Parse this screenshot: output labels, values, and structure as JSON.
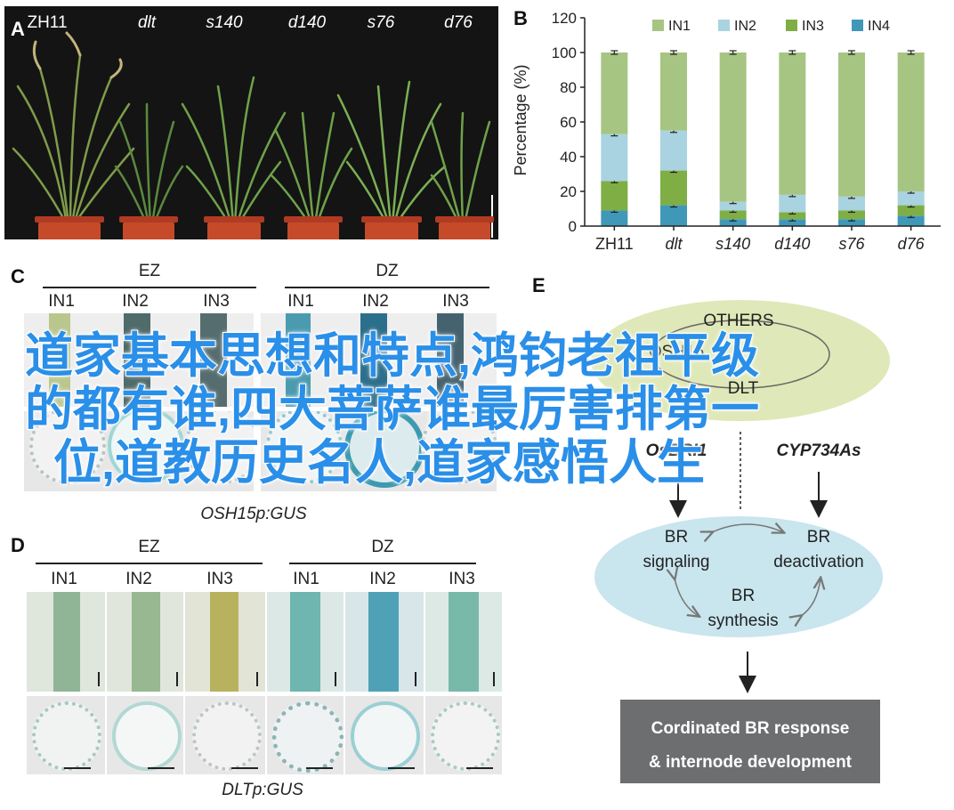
{
  "panels": {
    "A": {
      "letter": "A",
      "labels": [
        "ZH11",
        "dlt",
        "s140",
        "d140",
        "s76",
        "d76"
      ]
    },
    "B": {
      "letter": "B",
      "ylabel": "Percentage (%)"
    },
    "C": {
      "letter": "C",
      "groups": [
        "EZ",
        "DZ"
      ],
      "subs": [
        "IN1",
        "IN2",
        "IN3",
        "IN1",
        "IN2",
        "IN3"
      ],
      "caption": "OSH15p:GUS"
    },
    "D": {
      "letter": "D",
      "groups": [
        "EZ",
        "DZ"
      ],
      "subs": [
        "IN1",
        "IN2",
        "IN3",
        "IN1",
        "IN2",
        "IN3"
      ],
      "caption": "DLTp:GUS"
    },
    "E": {
      "letter": "E",
      "others": "OTHERS",
      "osh15": "OSH15",
      "dlt": "DLT",
      "osbri1": "OsBRI1",
      "cyp": "CYP734As",
      "br_signaling": [
        "BR",
        "signaling"
      ],
      "br_deactivation": [
        "BR",
        "deactivation"
      ],
      "br_synthesis": [
        "BR",
        "synthesis"
      ],
      "response": [
        "Cordinated BR response",
        "& internode development"
      ]
    }
  },
  "overlay": {
    "lines": [
      "道家基本思想和特点,鸿钧老祖平级",
      "的都有谁,四大菩萨谁最厉害排第一",
      "位,道教历史名人,道家感悟人生"
    ]
  },
  "chart_data": {
    "type": "bar",
    "stacked": true,
    "categories": [
      "ZH11",
      "dlt",
      "s140",
      "d140",
      "s76",
      "d76"
    ],
    "series": [
      {
        "name": "IN1",
        "color": "#a6c582",
        "values": [
          47,
          45,
          86,
          82,
          83,
          80
        ]
      },
      {
        "name": "IN2",
        "color": "#a9d3e0",
        "values": [
          27,
          23,
          5,
          10,
          8,
          8
        ]
      },
      {
        "name": "IN3",
        "color": "#7fae45",
        "values": [
          17,
          20,
          5,
          4,
          5,
          6
        ]
      },
      {
        "name": "IN4",
        "color": "#3f98b8",
        "values": [
          9,
          12,
          4,
          4,
          4,
          6
        ]
      }
    ],
    "ylabel": "Percentage (%)",
    "ylim": [
      0,
      120
    ],
    "yticks": [
      0,
      20,
      40,
      60,
      80,
      100,
      120
    ],
    "legend": "top"
  }
}
